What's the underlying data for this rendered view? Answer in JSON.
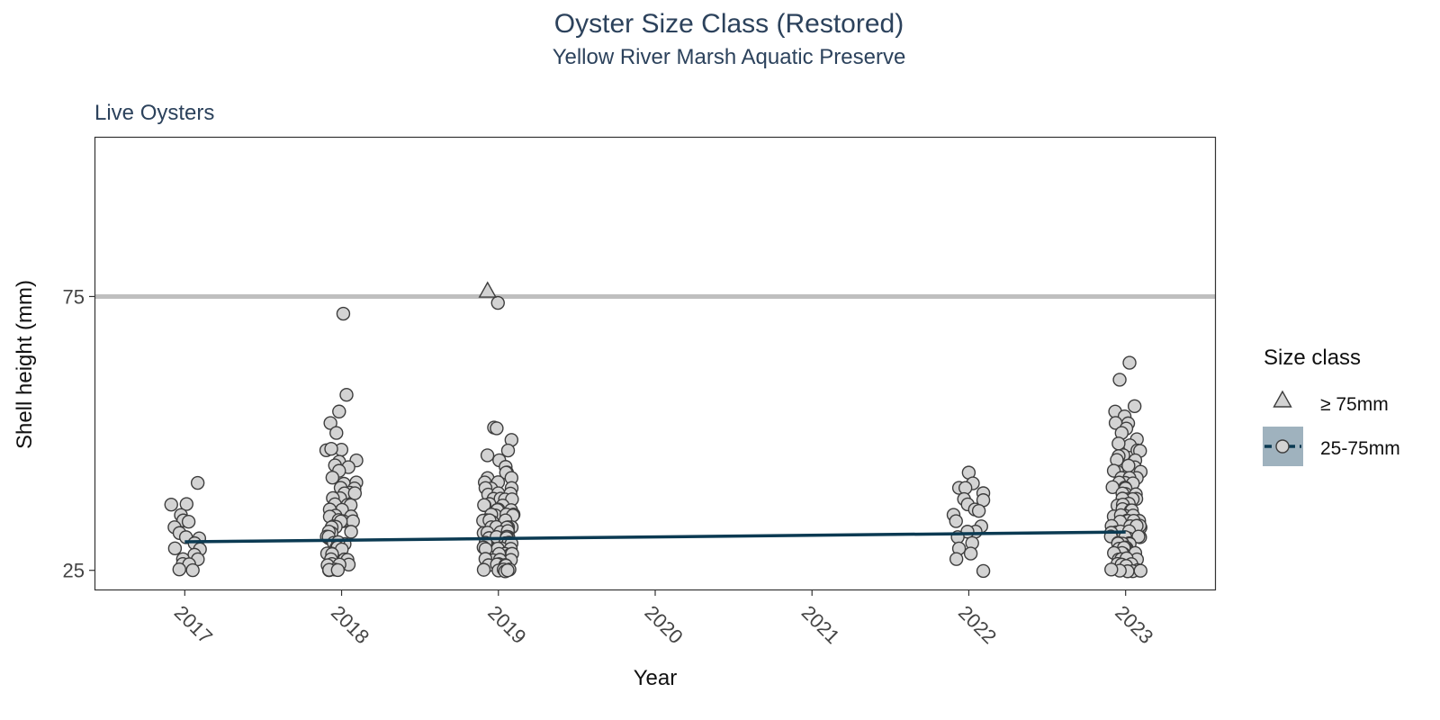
{
  "chart_data": {
    "type": "scatter",
    "title": "Oyster Size Class (Restored)",
    "subtitle": "Yellow River Marsh Aquatic Preserve",
    "facet_label": "Live Oysters",
    "xlabel": "Year",
    "ylabel": "Shell height (mm)",
    "x_ticks": [
      "2017",
      "2018",
      "2019",
      "2020",
      "2021",
      "2022",
      "2023"
    ],
    "y_ticks": [
      25,
      75
    ],
    "xlim": [
      2016.43,
      2023.57
    ],
    "ylim": [
      21.5,
      104
    ],
    "grid": false,
    "reference_line": {
      "y": 75,
      "color": "#bfbfbf"
    },
    "legend": {
      "title": "Size class",
      "placement": "right",
      "entries": [
        {
          "label": "≥ 75mm",
          "shape": "triangle"
        },
        {
          "label": "25-75mm",
          "shape": "circle"
        }
      ]
    },
    "colors": {
      "point_fill": "#d3d3d3",
      "point_stroke": "#3d3d3d",
      "trend": "#0b3a52",
      "legend_key_bg": "#9fb2be",
      "text_accent": "#2c425c"
    },
    "series": [
      {
        "name": "≥ 75mm",
        "shape": "triangle",
        "points": [
          {
            "year": 2019,
            "height": 76
          }
        ]
      },
      {
        "name": "25-75mm",
        "shape": "circle",
        "points_by_year": {
          "2017": [
            41,
            37,
            37,
            35,
            34,
            34,
            33,
            32,
            31,
            31,
            30,
            29,
            29,
            28,
            27,
            27,
            26,
            26,
            25,
            25
          ],
          "2018": [
            72,
            57,
            54,
            52,
            50,
            47,
            47,
            47,
            45,
            45,
            44,
            44,
            43,
            42,
            41,
            41,
            40,
            40,
            39,
            39,
            39,
            38,
            38,
            37,
            37,
            37,
            36,
            36,
            36,
            35,
            35,
            35,
            34,
            34,
            34,
            34,
            33,
            33,
            33,
            32,
            32,
            32,
            31,
            31,
            31,
            30,
            30,
            30,
            29,
            29,
            29,
            28,
            28,
            28,
            27,
            27,
            27,
            26,
            26,
            26,
            26,
            25,
            25,
            25,
            25
          ],
          "2019": [
            74,
            51,
            51,
            49,
            47,
            46,
            45,
            44,
            43,
            43,
            42,
            42,
            41,
            41,
            40,
            40,
            40,
            39,
            39,
            39,
            38,
            38,
            38,
            38,
            37,
            37,
            37,
            37,
            36,
            36,
            36,
            36,
            35,
            35,
            35,
            35,
            35,
            34,
            34,
            34,
            34,
            34,
            33,
            33,
            33,
            33,
            33,
            32,
            32,
            32,
            32,
            32,
            31,
            31,
            31,
            31,
            31,
            30,
            30,
            30,
            30,
            30,
            29,
            29,
            29,
            29,
            29,
            28,
            28,
            28,
            28,
            28,
            27,
            27,
            27,
            27,
            27,
            26,
            26,
            26,
            26,
            26,
            25,
            25,
            25,
            25,
            25,
            25
          ],
          "2022": [
            43,
            41,
            40,
            40,
            39,
            38,
            38,
            37,
            36,
            36,
            35,
            34,
            33,
            32,
            32,
            31,
            30,
            29,
            28,
            27,
            25
          ],
          "2023": [
            63,
            60,
            55,
            54,
            53,
            52,
            52,
            51,
            50,
            49,
            48,
            48,
            47,
            47,
            46,
            46,
            45,
            45,
            44,
            44,
            43,
            43,
            43,
            42,
            42,
            42,
            41,
            41,
            41,
            40,
            40,
            40,
            39,
            39,
            39,
            38,
            38,
            38,
            38,
            37,
            37,
            37,
            37,
            36,
            36,
            36,
            36,
            35,
            35,
            35,
            35,
            35,
            34,
            34,
            34,
            34,
            34,
            33,
            33,
            33,
            33,
            33,
            32,
            32,
            32,
            32,
            32,
            31,
            31,
            31,
            31,
            31,
            30,
            30,
            30,
            30,
            30,
            29,
            29,
            29,
            29,
            29,
            28,
            28,
            28,
            28,
            28,
            27,
            27,
            27,
            27,
            27,
            26,
            26,
            26,
            26,
            26,
            25,
            25,
            25,
            25,
            25,
            25
          ]
        }
      }
    ],
    "trend_line": {
      "name": "25-75mm",
      "points": [
        {
          "year": 2017,
          "height": 30.2
        },
        {
          "year": 2023,
          "height": 32.0
        }
      ]
    }
  }
}
